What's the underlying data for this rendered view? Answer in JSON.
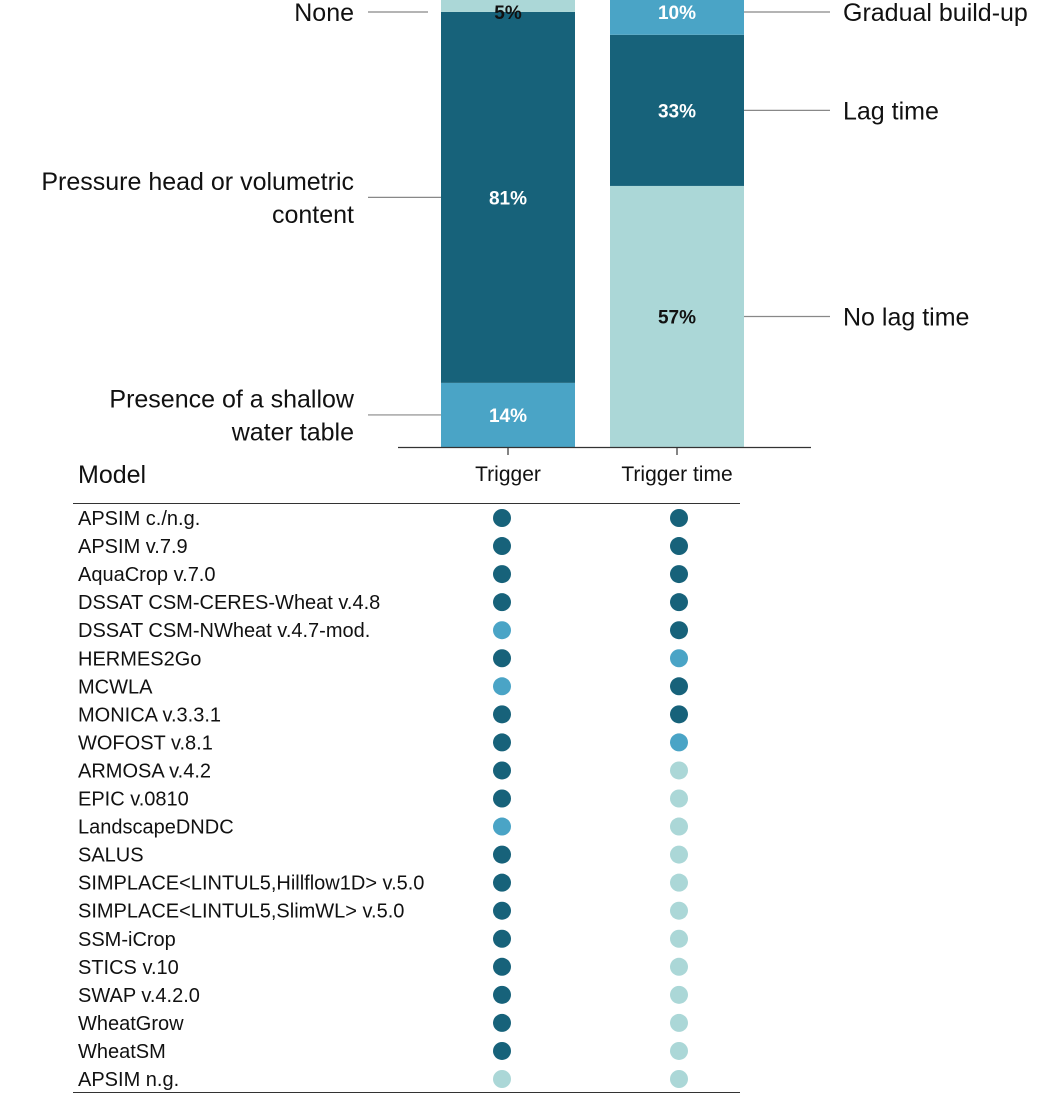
{
  "chart_data": [
    {
      "type": "bar",
      "stacked": true,
      "normalized": true,
      "categories": [
        "Trigger",
        "Trigger time"
      ],
      "colors": {
        "dark": "#17627a",
        "medium": "#4aa4c6",
        "light": "#abd7d7"
      },
      "series": [
        {
          "bar": "Trigger",
          "segments": [
            {
              "label": "Presence of a shallow water table",
              "value": 14,
              "text": "14%",
              "color": "#4aa4c6"
            },
            {
              "label": "Pressure head or volumetric content",
              "value": 81,
              "text": "81%",
              "color": "#17627a"
            },
            {
              "label": "None",
              "value": 5,
              "text": "5%",
              "color": "#abd7d7"
            }
          ]
        },
        {
          "bar": "Trigger time",
          "segments": [
            {
              "label": "No lag time",
              "value": 57,
              "text": "57%",
              "color": "#abd7d7"
            },
            {
              "label": "Lag time",
              "value": 33,
              "text": "33%",
              "color": "#17627a"
            },
            {
              "label": "Gradual build-up",
              "value": 10,
              "text": "10%",
              "color": "#4aa4c6"
            }
          ]
        }
      ]
    },
    {
      "type": "table",
      "header": "Model",
      "columns": [
        "Trigger",
        "Trigger time"
      ],
      "rows": [
        {
          "model": "APSIM c./n.g.",
          "trigger": "dark",
          "trigger_time": "dark"
        },
        {
          "model": "APSIM v.7.9",
          "trigger": "dark",
          "trigger_time": "dark"
        },
        {
          "model": "AquaCrop v.7.0",
          "trigger": "dark",
          "trigger_time": "dark"
        },
        {
          "model": "DSSAT CSM-CERES-Wheat v.4.8",
          "trigger": "dark",
          "trigger_time": "dark"
        },
        {
          "model": "DSSAT CSM-NWheat v.4.7-mod.",
          "trigger": "medium",
          "trigger_time": "dark"
        },
        {
          "model": "HERMES2Go",
          "trigger": "dark",
          "trigger_time": "medium"
        },
        {
          "model": "MCWLA",
          "trigger": "medium",
          "trigger_time": "dark"
        },
        {
          "model": "MONICA v.3.3.1",
          "trigger": "dark",
          "trigger_time": "dark"
        },
        {
          "model": "WOFOST v.8.1",
          "trigger": "dark",
          "trigger_time": "medium"
        },
        {
          "model": "ARMOSA v.4.2",
          "trigger": "dark",
          "trigger_time": "light"
        },
        {
          "model": "EPIC v.0810",
          "trigger": "dark",
          "trigger_time": "light"
        },
        {
          "model": "LandscapeDNDC",
          "trigger": "medium",
          "trigger_time": "light"
        },
        {
          "model": "SALUS",
          "trigger": "dark",
          "trigger_time": "light"
        },
        {
          "model": "SIMPLACE<LINTUL5,Hillflow1D> v.5.0",
          "trigger": "dark",
          "trigger_time": "light"
        },
        {
          "model": "SIMPLACE<LINTUL5,SlimWL> v.5.0",
          "trigger": "dark",
          "trigger_time": "light"
        },
        {
          "model": "SSM-iCrop",
          "trigger": "dark",
          "trigger_time": "light"
        },
        {
          "model": "STICS v.10",
          "trigger": "dark",
          "trigger_time": "light"
        },
        {
          "model": "SWAP v.4.2.0",
          "trigger": "dark",
          "trigger_time": "light"
        },
        {
          "model": "WheatGrow",
          "trigger": "dark",
          "trigger_time": "light"
        },
        {
          "model": "WheatSM",
          "trigger": "dark",
          "trigger_time": "light"
        },
        {
          "model": "APSIM n.g.",
          "trigger": "light",
          "trigger_time": "light"
        }
      ]
    }
  ]
}
